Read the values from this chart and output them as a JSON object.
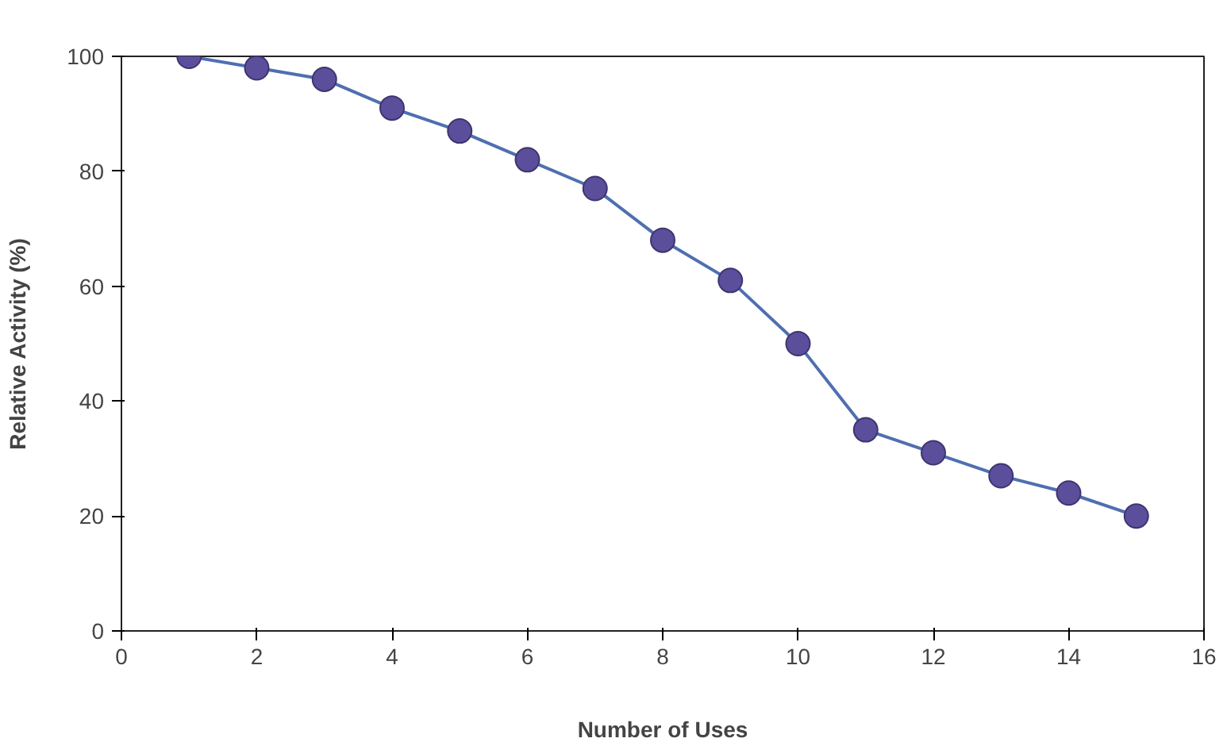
{
  "chart_data": {
    "type": "line",
    "xlabel": "Number of Uses",
    "ylabel": "Relative Activity (%)",
    "x": [
      1,
      2,
      3,
      4,
      5,
      6,
      7,
      8,
      9,
      10,
      11,
      12,
      13,
      14,
      15
    ],
    "series": [
      {
        "color": "#4f6fb0",
        "values": [
          100,
          98,
          96,
          91,
          87,
          82,
          77,
          68,
          61,
          50,
          35,
          31,
          27,
          24,
          20
        ]
      }
    ],
    "marker": "circle",
    "xlim": [
      0,
      16
    ],
    "xticks": [
      0,
      2,
      4,
      6,
      8,
      10,
      12,
      14,
      16
    ],
    "ylim": [
      0,
      100
    ],
    "yticks": [
      0,
      20,
      40,
      60,
      80,
      100
    ],
    "grid": false
  }
}
